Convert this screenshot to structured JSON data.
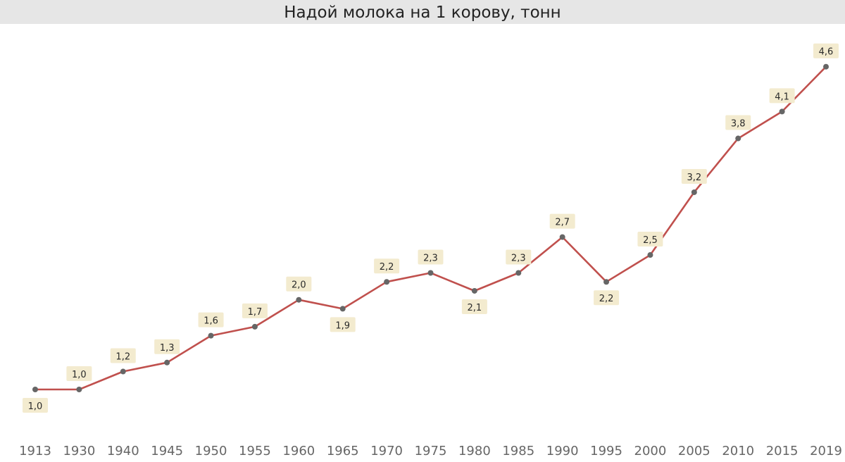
{
  "chart_data": {
    "type": "line",
    "title": "Надой молока на 1 корову, тонн",
    "x": [
      "1913",
      "1930",
      "1940",
      "1945",
      "1950",
      "1955",
      "1960",
      "1965",
      "1970",
      "1975",
      "1980",
      "1985",
      "1990",
      "1995",
      "2000",
      "2005",
      "2010",
      "2015",
      "2019"
    ],
    "series": [
      {
        "values": [
          1.0,
          1.0,
          1.2,
          1.3,
          1.6,
          1.7,
          2.0,
          1.9,
          2.2,
          2.3,
          2.1,
          2.3,
          2.7,
          2.2,
          2.5,
          3.2,
          3.8,
          4.1,
          4.6
        ],
        "labels": [
          "1,0",
          "1,0",
          "1,2",
          "1,3",
          "1,6",
          "1,7",
          "2,0",
          "1,9",
          "2,2",
          "2,3",
          "2,1",
          "2,3",
          "2,7",
          "2,2",
          "2,5",
          "3,2",
          "3,8",
          "4,1",
          "4,6"
        ],
        "label_positions": [
          "below",
          "above",
          "above",
          "above",
          "above",
          "above",
          "above",
          "below",
          "above",
          "above",
          "below",
          "above",
          "above",
          "below",
          "above",
          "above",
          "above",
          "above",
          "above"
        ]
      }
    ],
    "grid": false,
    "legend": "none",
    "colors": {
      "line": "#c0504d",
      "marker": "#666666",
      "label_bg": "#f3ebcf",
      "title_bg": "#e6e6e6"
    }
  }
}
